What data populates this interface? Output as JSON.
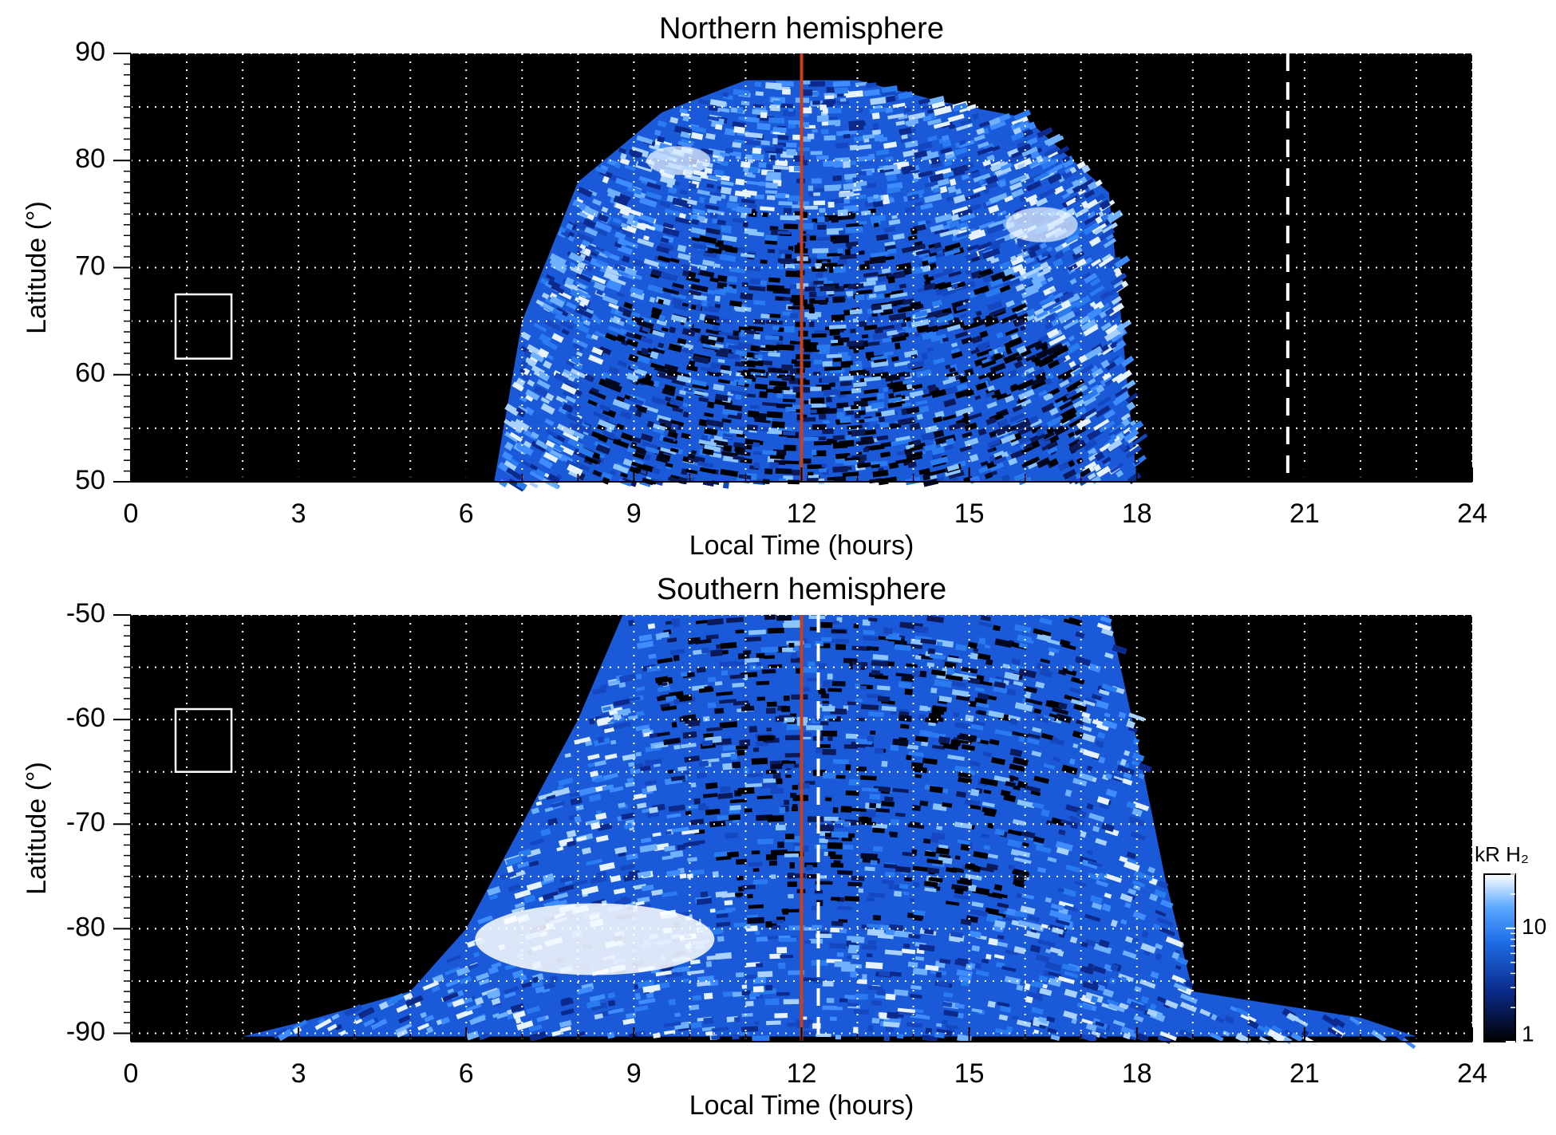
{
  "chart_data": [
    {
      "type": "heatmap",
      "title": "Northern hemisphere",
      "x_label": "Local Time (hours)",
      "y_label": "Latitude (°)",
      "xlim": [
        0,
        24
      ],
      "xticks": [
        0,
        3,
        6,
        9,
        12,
        15,
        18,
        21,
        24
      ],
      "ylim": [
        50,
        90
      ],
      "yticks": [
        50,
        60,
        70,
        80,
        90
      ],
      "grid": true,
      "x_grid_step": 1,
      "y_grid_step": 5,
      "x_minor_step": 1,
      "y_minor_step": 1,
      "vlines": [
        {
          "x": 12,
          "color": "#c8401c",
          "style": "solid"
        },
        {
          "x": 20.7,
          "color": "#ffffff",
          "style": "dashed"
        }
      ],
      "box": {
        "x": [
          0.8,
          1.8
        ],
        "y": [
          61.5,
          67.5
        ],
        "color": "#ffffff"
      }
    },
    {
      "type": "heatmap",
      "title": "Southern hemisphere",
      "x_label": "Local Time (hours)",
      "y_label": "Latitude (°)",
      "xlim": [
        0,
        24
      ],
      "xticks": [
        0,
        3,
        6,
        9,
        12,
        15,
        18,
        21,
        24
      ],
      "ylim": [
        -90.8,
        -50
      ],
      "yticks": [
        -90,
        -80,
        -70,
        -60,
        -50
      ],
      "grid": true,
      "x_grid_step": 1,
      "y_grid_step": 5,
      "x_minor_step": 1,
      "y_minor_step": 1,
      "vlines": [
        {
          "x": 12,
          "color": "#c8401c",
          "style": "solid"
        },
        {
          "x": 12.3,
          "color": "#ffffff",
          "style": "dashed"
        }
      ],
      "box": {
        "x": [
          0.8,
          1.8
        ],
        "y": [
          -65,
          -59
        ],
        "color": "#ffffff"
      },
      "colorbar": {
        "label": "kR H₂",
        "lim": [
          1,
          30
        ],
        "ticks": [
          1,
          10
        ],
        "log": true
      }
    }
  ]
}
